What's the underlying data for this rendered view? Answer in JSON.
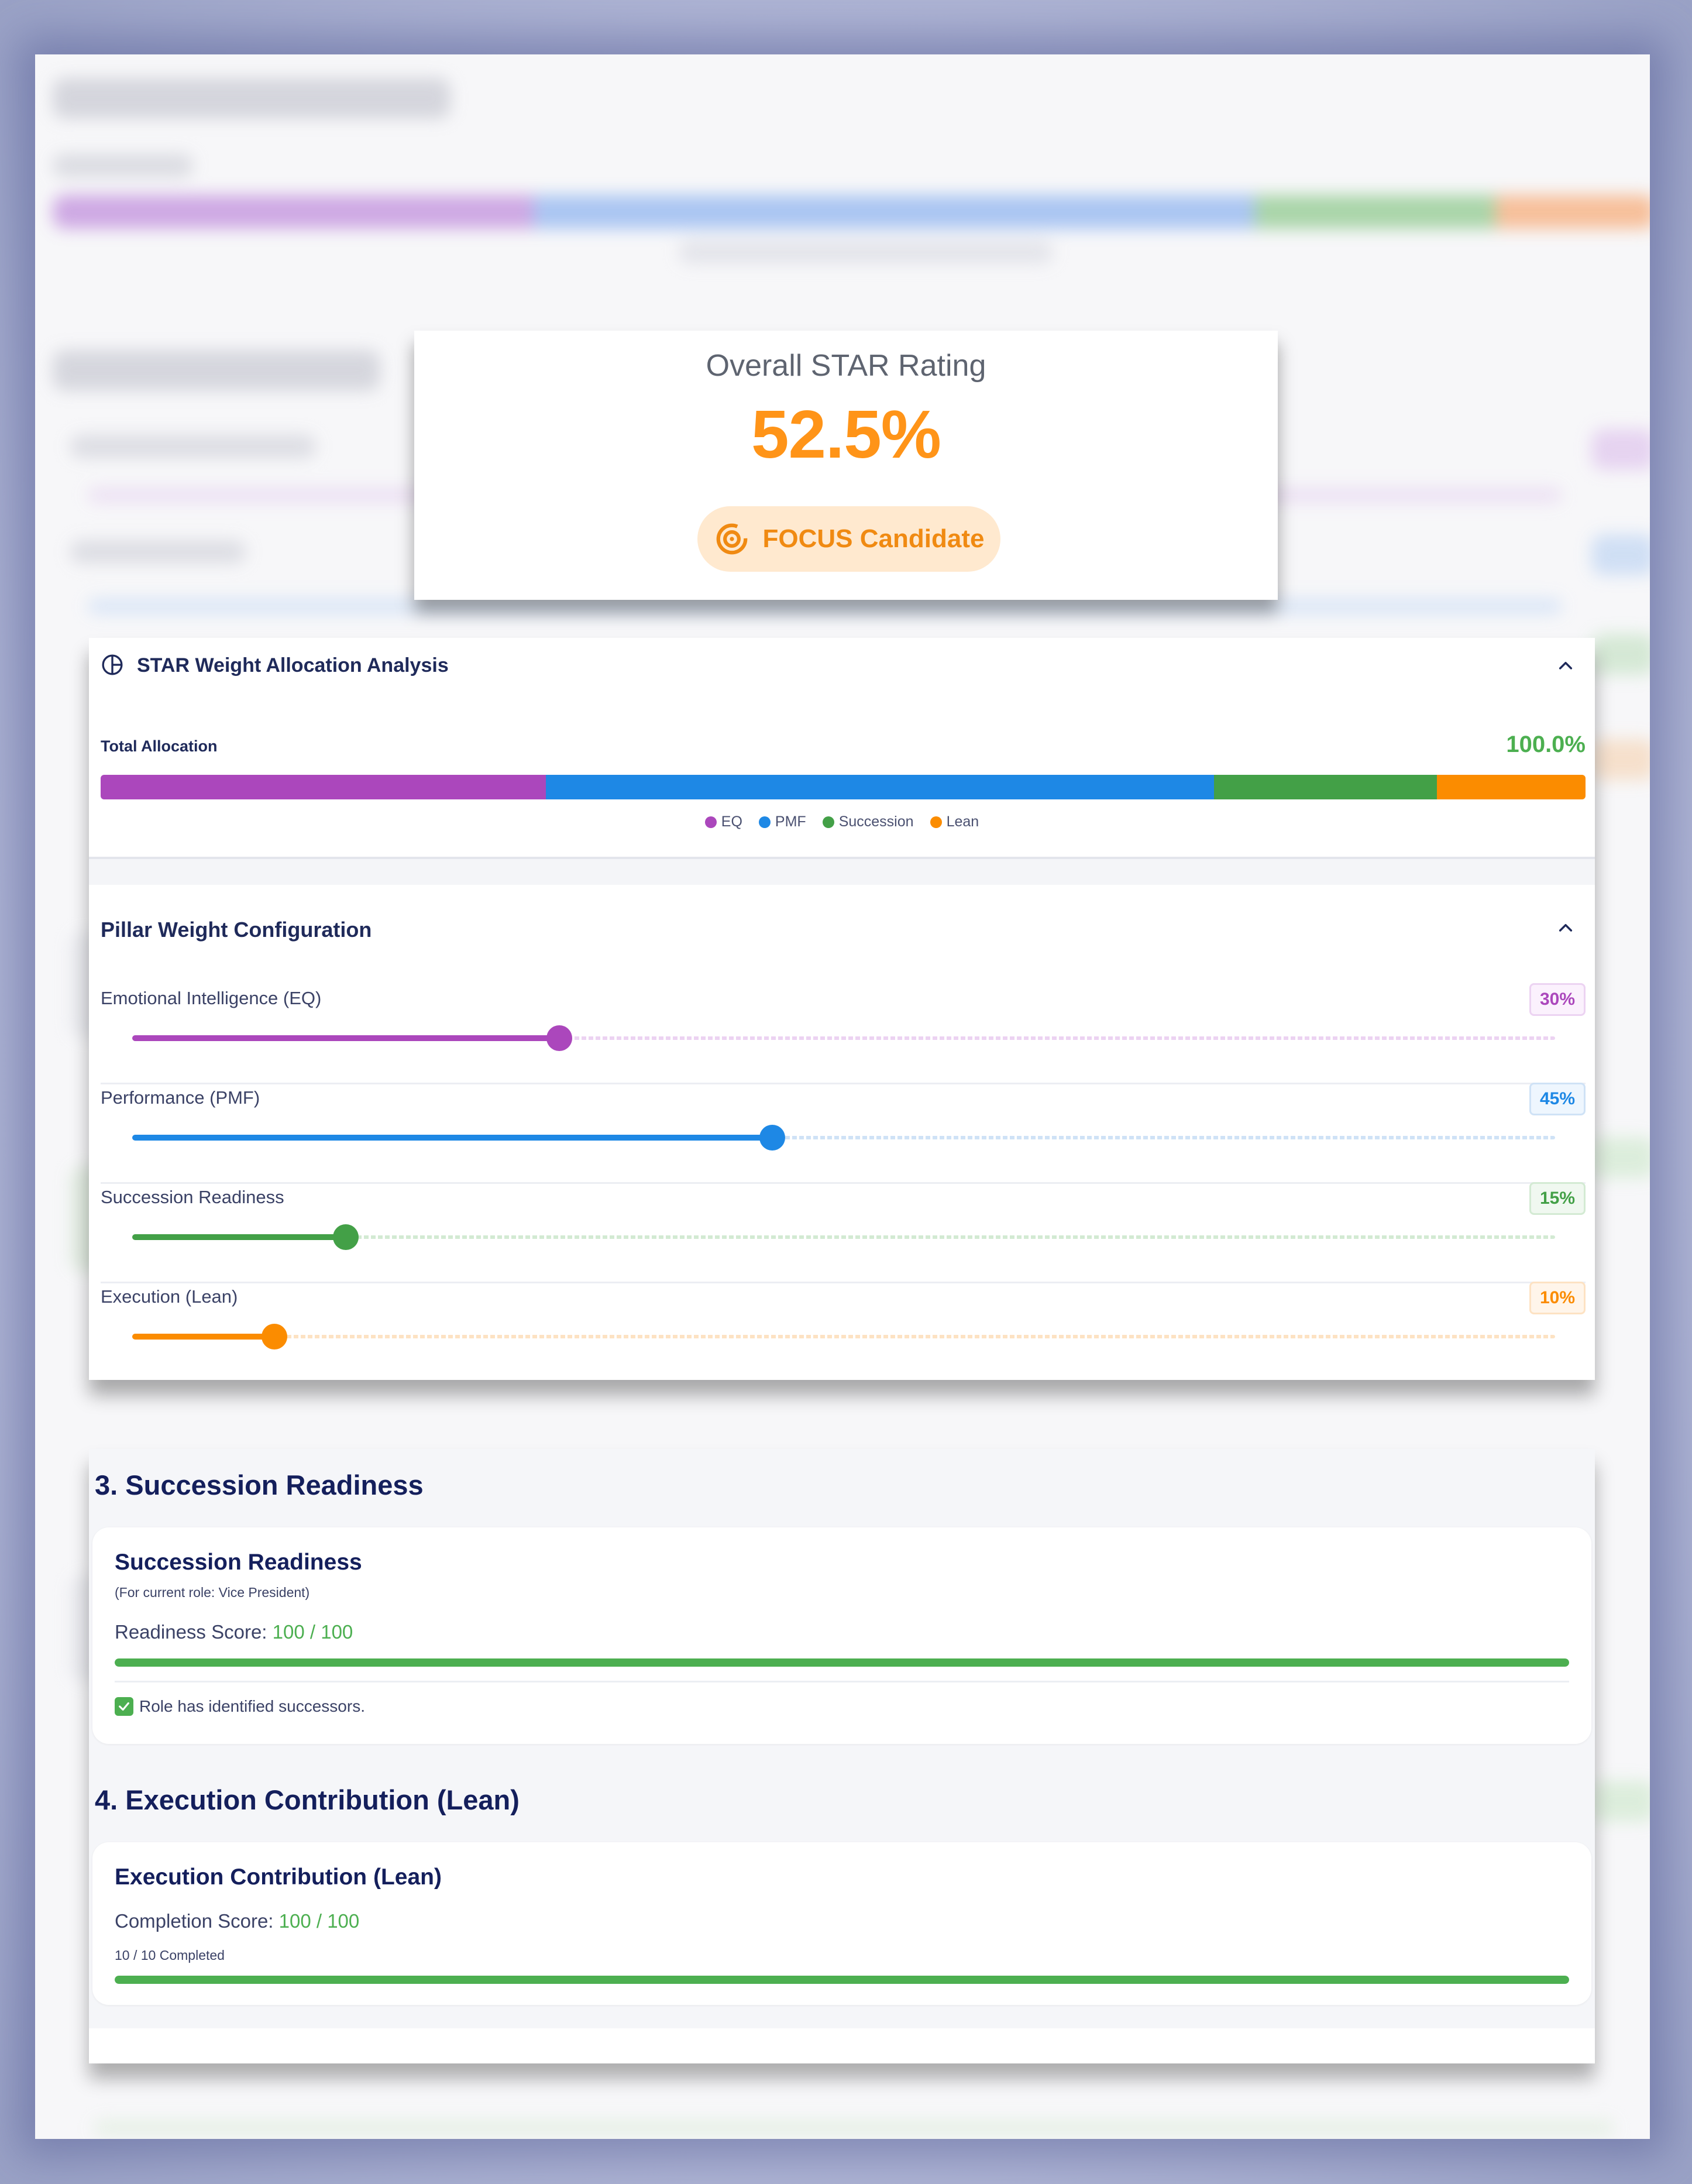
{
  "rating": {
    "title": "Overall STAR Rating",
    "value": "52.5%",
    "badge": "FOCUS Candidate",
    "badge_icon": "target-icon",
    "accent": "#ff9418"
  },
  "weight_analysis": {
    "title": "STAR Weight Allocation Analysis",
    "icon": "pie-chart-icon",
    "total_label": "Total Allocation",
    "total_value": "100.0%",
    "segments": [
      {
        "name": "EQ",
        "percent": 30,
        "color": "#ab47bc"
      },
      {
        "name": "PMF",
        "percent": 45,
        "color": "#1e88e5"
      },
      {
        "name": "Succession",
        "percent": 15,
        "color": "#43a047"
      },
      {
        "name": "Lean",
        "percent": 10,
        "color": "#fb8c00"
      }
    ]
  },
  "pillar_config": {
    "title": "Pillar Weight Configuration",
    "sliders": [
      {
        "label": "Emotional Intelligence (EQ)",
        "value_text": "30%",
        "value": 30,
        "color": "#ab47bc",
        "light": "#ecd3f2",
        "pill_bg": "#fbf1fd"
      },
      {
        "label": "Performance (PMF)",
        "value_text": "45%",
        "value": 45,
        "color": "#1e88e5",
        "light": "#cfe2f6",
        "pill_bg": "#eef6fe"
      },
      {
        "label": "Succession Readiness",
        "value_text": "15%",
        "value": 15,
        "color": "#43a047",
        "light": "#d3ead3",
        "pill_bg": "#f0f8f0"
      },
      {
        "label": "Execution (Lean)",
        "value_text": "10%",
        "value": 10,
        "color": "#fb8c00",
        "light": "#fde2c3",
        "pill_bg": "#fff5ea"
      }
    ]
  },
  "succession": {
    "heading": "3. Succession Readiness",
    "card_title": "Succession Readiness",
    "note": "(For current role: Vice President)",
    "score_label": "Readiness Score:",
    "score_value": "100 / 100",
    "progress": 100,
    "check_text": "Role has identified successors."
  },
  "execution": {
    "heading": "4. Execution Contribution (Lean)",
    "card_title": "Execution Contribution (Lean)",
    "score_label": "Completion Score:",
    "score_value": "100 / 100",
    "completed_text": "10 / 10 Completed",
    "progress": 100
  }
}
